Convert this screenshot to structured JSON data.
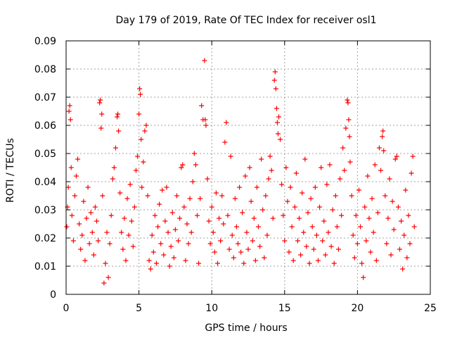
{
  "chart_data": {
    "type": "scatter",
    "title": "Day 179 of 2019, Rate Of TEC Index for receiver osl1",
    "xlabel": "GPS time / hours",
    "ylabel": "ROTI / TECUs",
    "xlim": [
      0,
      25
    ],
    "ylim": [
      0,
      0.09
    ],
    "x_ticks": [
      "0",
      "5",
      "10",
      "15",
      "20",
      "25"
    ],
    "y_ticks": [
      "0",
      "0.01",
      "0.02",
      "0.03",
      "0.04",
      "0.05",
      "0.06",
      "0.07",
      "0.08",
      "0.09"
    ],
    "grid": true,
    "marker": "plus",
    "point_color": "#ff0000",
    "series": [
      {
        "points": [
          [
            0.05,
            0.024
          ],
          [
            0.1,
            0.031
          ],
          [
            0.15,
            0.038
          ],
          [
            0.2,
            0.065
          ],
          [
            0.25,
            0.067
          ],
          [
            0.3,
            0.062
          ],
          [
            0.35,
            0.045
          ],
          [
            0.4,
            0.028
          ],
          [
            0.5,
            0.019
          ],
          [
            0.6,
            0.035
          ],
          [
            0.7,
            0.042
          ],
          [
            0.8,
            0.048
          ],
          [
            0.9,
            0.025
          ],
          [
            1.0,
            0.016
          ],
          [
            1.1,
            0.021
          ],
          [
            1.2,
            0.033
          ],
          [
            1.3,
            0.012
          ],
          [
            1.4,
            0.027
          ],
          [
            1.5,
            0.038
          ],
          [
            1.6,
            0.018
          ],
          [
            1.7,
            0.029
          ],
          [
            1.8,
            0.022
          ],
          [
            1.9,
            0.014
          ],
          [
            2.0,
            0.031
          ],
          [
            2.1,
            0.026
          ],
          [
            2.2,
            0.019
          ],
          [
            2.3,
            0.068
          ],
          [
            2.35,
            0.069
          ],
          [
            2.4,
            0.059
          ],
          [
            2.45,
            0.064
          ],
          [
            2.5,
            0.035
          ],
          [
            2.6,
            0.004
          ],
          [
            2.7,
            0.011
          ],
          [
            2.8,
            0.022
          ],
          [
            2.9,
            0.006
          ],
          [
            3.0,
            0.018
          ],
          [
            3.1,
            0.028
          ],
          [
            3.2,
            0.041
          ],
          [
            3.3,
            0.045
          ],
          [
            3.4,
            0.052
          ],
          [
            3.5,
            0.063
          ],
          [
            3.55,
            0.064
          ],
          [
            3.6,
            0.058
          ],
          [
            3.7,
            0.036
          ],
          [
            3.8,
            0.022
          ],
          [
            3.9,
            0.016
          ],
          [
            4.0,
            0.027
          ],
          [
            4.1,
            0.012
          ],
          [
            4.2,
            0.034
          ],
          [
            4.3,
            0.021
          ],
          [
            4.4,
            0.039
          ],
          [
            4.5,
            0.026
          ],
          [
            4.6,
            0.017
          ],
          [
            4.7,
            0.031
          ],
          [
            4.8,
            0.044
          ],
          [
            4.9,
            0.049
          ],
          [
            5.0,
            0.064
          ],
          [
            5.05,
            0.073
          ],
          [
            5.1,
            0.071
          ],
          [
            5.15,
            0.055
          ],
          [
            5.2,
            0.038
          ],
          [
            5.3,
            0.047
          ],
          [
            5.4,
            0.058
          ],
          [
            5.5,
            0.06
          ],
          [
            5.6,
            0.035
          ],
          [
            5.7,
            0.012
          ],
          [
            5.8,
            0.009
          ],
          [
            5.9,
            0.021
          ],
          [
            6.0,
            0.015
          ],
          [
            6.1,
            0.028
          ],
          [
            6.2,
            0.011
          ],
          [
            6.3,
            0.024
          ],
          [
            6.4,
            0.032
          ],
          [
            6.5,
            0.018
          ],
          [
            6.6,
            0.037
          ],
          [
            6.7,
            0.014
          ],
          [
            6.8,
            0.026
          ],
          [
            6.9,
            0.038
          ],
          [
            7.0,
            0.022
          ],
          [
            7.1,
            0.01
          ],
          [
            7.2,
            0.017
          ],
          [
            7.3,
            0.029
          ],
          [
            7.4,
            0.013
          ],
          [
            7.5,
            0.023
          ],
          [
            7.6,
            0.035
          ],
          [
            7.7,
            0.019
          ],
          [
            7.8,
            0.027
          ],
          [
            7.9,
            0.045
          ],
          [
            8.0,
            0.046
          ],
          [
            8.1,
            0.031
          ],
          [
            8.2,
            0.012
          ],
          [
            8.3,
            0.025
          ],
          [
            8.4,
            0.018
          ],
          [
            8.5,
            0.034
          ],
          [
            8.6,
            0.022
          ],
          [
            8.7,
            0.04
          ],
          [
            8.8,
            0.05
          ],
          [
            8.9,
            0.046
          ],
          [
            9.0,
            0.028
          ],
          [
            9.1,
            0.011
          ],
          [
            9.2,
            0.034
          ],
          [
            9.3,
            0.067
          ],
          [
            9.4,
            0.062
          ],
          [
            9.5,
            0.083
          ],
          [
            9.55,
            0.062
          ],
          [
            9.6,
            0.06
          ],
          [
            9.7,
            0.041
          ],
          [
            9.8,
            0.026
          ],
          [
            9.9,
            0.018
          ],
          [
            10.0,
            0.031
          ],
          [
            10.1,
            0.022
          ],
          [
            10.2,
            0.015
          ],
          [
            10.3,
            0.036
          ],
          [
            10.4,
            0.011
          ],
          [
            10.5,
            0.027
          ],
          [
            10.6,
            0.019
          ],
          [
            10.7,
            0.035
          ],
          [
            10.8,
            0.025
          ],
          [
            10.9,
            0.054
          ],
          [
            11.0,
            0.061
          ],
          [
            11.1,
            0.028
          ],
          [
            11.2,
            0.016
          ],
          [
            11.3,
            0.049
          ],
          [
            11.4,
            0.021
          ],
          [
            11.5,
            0.013
          ],
          [
            11.6,
            0.034
          ],
          [
            11.7,
            0.024
          ],
          [
            11.8,
            0.018
          ],
          [
            11.9,
            0.038
          ],
          [
            12.0,
            0.015
          ],
          [
            12.1,
            0.029
          ],
          [
            12.2,
            0.011
          ],
          [
            12.3,
            0.042
          ],
          [
            12.4,
            0.022
          ],
          [
            12.5,
            0.016
          ],
          [
            12.6,
            0.045
          ],
          [
            12.7,
            0.033
          ],
          [
            12.8,
            0.019
          ],
          [
            12.9,
            0.027
          ],
          [
            13.0,
            0.012
          ],
          [
            13.1,
            0.038
          ],
          [
            13.2,
            0.024
          ],
          [
            13.3,
            0.017
          ],
          [
            13.4,
            0.048
          ],
          [
            13.5,
            0.03
          ],
          [
            13.6,
            0.013
          ],
          [
            13.7,
            0.035
          ],
          [
            13.8,
            0.021
          ],
          [
            13.9,
            0.041
          ],
          [
            14.0,
            0.049
          ],
          [
            14.1,
            0.044
          ],
          [
            14.2,
            0.027
          ],
          [
            14.3,
            0.076
          ],
          [
            14.35,
            0.079
          ],
          [
            14.4,
            0.073
          ],
          [
            14.45,
            0.066
          ],
          [
            14.5,
            0.061
          ],
          [
            14.55,
            0.057
          ],
          [
            14.6,
            0.063
          ],
          [
            14.7,
            0.055
          ],
          [
            14.8,
            0.039
          ],
          [
            14.9,
            0.028
          ],
          [
            15.0,
            0.019
          ],
          [
            15.1,
            0.045
          ],
          [
            15.2,
            0.033
          ],
          [
            15.3,
            0.015
          ],
          [
            15.4,
            0.038
          ],
          [
            15.5,
            0.024
          ],
          [
            15.6,
            0.012
          ],
          [
            15.7,
            0.031
          ],
          [
            15.8,
            0.043
          ],
          [
            15.9,
            0.019
          ],
          [
            16.0,
            0.027
          ],
          [
            16.1,
            0.014
          ],
          [
            16.2,
            0.036
          ],
          [
            16.3,
            0.022
          ],
          [
            16.4,
            0.048
          ],
          [
            16.5,
            0.017
          ],
          [
            16.6,
            0.029
          ],
          [
            16.7,
            0.011
          ],
          [
            16.8,
            0.034
          ],
          [
            16.9,
            0.024
          ],
          [
            17.0,
            0.016
          ],
          [
            17.1,
            0.038
          ],
          [
            17.2,
            0.021
          ],
          [
            17.3,
            0.012
          ],
          [
            17.4,
            0.031
          ],
          [
            17.5,
            0.045
          ],
          [
            17.6,
            0.019
          ],
          [
            17.7,
            0.026
          ],
          [
            17.8,
            0.014
          ],
          [
            17.9,
            0.039
          ],
          [
            18.0,
            0.022
          ],
          [
            18.1,
            0.046
          ],
          [
            18.2,
            0.017
          ],
          [
            18.3,
            0.03
          ],
          [
            18.4,
            0.011
          ],
          [
            18.5,
            0.035
          ],
          [
            18.6,
            0.024
          ],
          [
            18.7,
            0.016
          ],
          [
            18.8,
            0.041
          ],
          [
            18.9,
            0.028
          ],
          [
            19.0,
            0.052
          ],
          [
            19.1,
            0.044
          ],
          [
            19.2,
            0.059
          ],
          [
            19.3,
            0.069
          ],
          [
            19.35,
            0.068
          ],
          [
            19.4,
            0.062
          ],
          [
            19.45,
            0.056
          ],
          [
            19.5,
            0.047
          ],
          [
            19.6,
            0.035
          ],
          [
            19.7,
            0.021
          ],
          [
            19.8,
            0.013
          ],
          [
            19.9,
            0.028
          ],
          [
            20.0,
            0.018
          ],
          [
            20.1,
            0.037
          ],
          [
            20.2,
            0.024
          ],
          [
            20.3,
            0.011
          ],
          [
            20.4,
            0.006
          ],
          [
            20.5,
            0.031
          ],
          [
            20.6,
            0.019
          ],
          [
            20.7,
            0.042
          ],
          [
            20.8,
            0.027
          ],
          [
            20.9,
            0.015
          ],
          [
            21.0,
            0.034
          ],
          [
            21.1,
            0.022
          ],
          [
            21.2,
            0.046
          ],
          [
            21.3,
            0.012
          ],
          [
            21.4,
            0.029
          ],
          [
            21.5,
            0.052
          ],
          [
            21.6,
            0.044
          ],
          [
            21.7,
            0.056
          ],
          [
            21.75,
            0.058
          ],
          [
            21.8,
            0.051
          ],
          [
            21.9,
            0.035
          ],
          [
            22.0,
            0.018
          ],
          [
            22.1,
            0.027
          ],
          [
            22.2,
            0.041
          ],
          [
            22.3,
            0.014
          ],
          [
            22.4,
            0.033
          ],
          [
            22.5,
            0.023
          ],
          [
            22.6,
            0.048
          ],
          [
            22.7,
            0.049
          ],
          [
            22.8,
            0.031
          ],
          [
            22.9,
            0.016
          ],
          [
            23.0,
            0.026
          ],
          [
            23.1,
            0.009
          ],
          [
            23.2,
            0.021
          ],
          [
            23.3,
            0.037
          ],
          [
            23.4,
            0.013
          ],
          [
            23.5,
            0.028
          ],
          [
            23.6,
            0.018
          ],
          [
            23.7,
            0.043
          ],
          [
            23.8,
            0.049
          ],
          [
            23.9,
            0.024
          ]
        ]
      }
    ]
  }
}
